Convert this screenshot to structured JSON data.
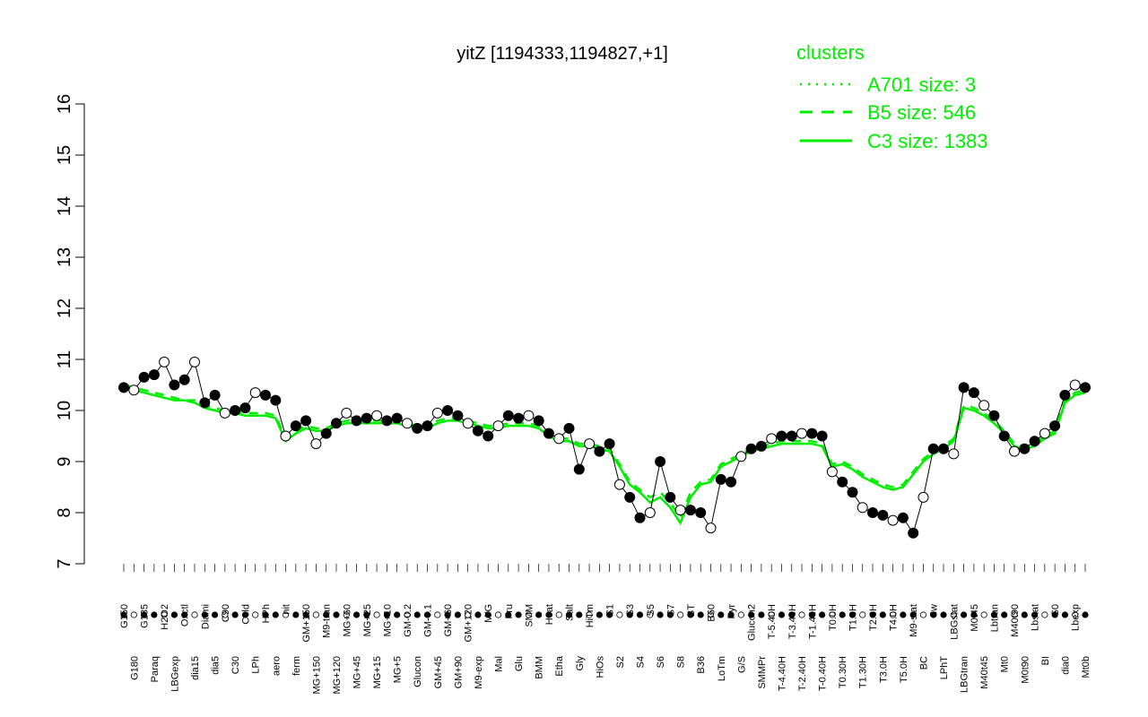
{
  "chart_data": {
    "type": "line",
    "title": "yitZ [1194333,1194827,+1]",
    "ylim": [
      7,
      16
    ],
    "yticks": [
      7,
      8,
      9,
      10,
      11,
      12,
      13,
      14,
      15,
      16
    ],
    "legend": {
      "title": "clusters",
      "placement": "top-right",
      "entries": [
        {
          "label": "A701 size: 3",
          "style": "dotted"
        },
        {
          "label": "B5 size: 546",
          "style": "dashed"
        },
        {
          "label": "C3 size: 1383",
          "style": "solid"
        }
      ]
    },
    "colors": {
      "cluster_line": "#00ee00",
      "point_dark": "#000000",
      "point_light": "#ffffff"
    },
    "categories": [
      "G150",
      "G180",
      "G135",
      "Paraq",
      "H2O2",
      "LBGexp",
      "Oxctl",
      "dia15",
      "Diami",
      "dia5",
      "C90",
      "C30",
      "Cold",
      "LPh",
      "HPh",
      "aero",
      "nit",
      "ferm",
      "GM+150",
      "MG+150",
      "M9-tran",
      "MG+120",
      "MG+60",
      "MG+45",
      "MG+25",
      "MG+15",
      "MG+10",
      "MG+5",
      "GM-0.2",
      "Glucon",
      "GM-0.1",
      "GM+45",
      "GM+60",
      "GM+90",
      "GM+120",
      "M9-exp",
      "M/G",
      "Mal",
      "Fru",
      "Glu",
      "SMM",
      "BMM",
      "Heat",
      "Etha",
      "Salt",
      "Gly",
      "HiTm",
      "HiOs",
      "S1",
      "S2",
      "S3",
      "S4",
      "S5",
      "S6",
      "S7",
      "S8",
      "BT",
      "B36",
      "B60",
      "LoTm",
      "Pyr",
      "G/S",
      "Glucon2",
      "SMMPr",
      "T-5.40H",
      "T-4.40H",
      "T-3.40H",
      "T-2.40H",
      "T-1.40H",
      "T-0.40H",
      "T0.0H",
      "T0.30H",
      "T1.0H",
      "T1.30H",
      "T2.0H",
      "T3.0H",
      "T4.0H",
      "T5.0H",
      "M9-stat",
      "BC",
      "Sw",
      "LPhT",
      "LBGstat",
      "LBGtran",
      "M0t45",
      "M40t45",
      "Lbtran",
      "Mt0",
      "M40t90",
      "M0t90",
      "Lbstat",
      "BI",
      "S0",
      "dia0",
      "Lbexp",
      "Mt0b"
    ],
    "series": [
      {
        "values": [
          10.45,
          10.4,
          10.65,
          10.7,
          10.95,
          10.5,
          10.6,
          10.95,
          10.15,
          10.3,
          9.95,
          10.0,
          10.05,
          10.35,
          10.3,
          10.2,
          9.5,
          9.7,
          9.8,
          9.35,
          9.55,
          9.75,
          9.95,
          9.8,
          9.85,
          9.9,
          9.8,
          9.85,
          9.75,
          9.65,
          9.7,
          9.95,
          10.0,
          9.9,
          9.75,
          9.6,
          9.5,
          9.7,
          9.9,
          9.85,
          9.9,
          9.8,
          9.55,
          9.45,
          9.65,
          8.85,
          9.35,
          9.2,
          9.35,
          8.55,
          8.3,
          7.9,
          8.0,
          9.0,
          8.3,
          8.05,
          8.05,
          8.0,
          7.7,
          8.65,
          8.6,
          9.1,
          9.25,
          9.3,
          9.45,
          9.5,
          9.5,
          9.55,
          9.55,
          9.5,
          8.8,
          8.6,
          8.4,
          8.1,
          8.0,
          7.95,
          7.85,
          7.9,
          7.6,
          8.3,
          9.25,
          9.25,
          9.15,
          10.45,
          10.35,
          10.1,
          9.9,
          9.5,
          9.2,
          9.25,
          9.4,
          9.55,
          9.7,
          10.3,
          10.5,
          10.45
        ]
      }
    ],
    "cluster_lines": [
      {
        "name": "C3 size: 1383",
        "style": "solid",
        "values": [
          10.45,
          10.4,
          10.35,
          10.3,
          10.25,
          10.2,
          10.2,
          10.15,
          10.05,
          10.0,
          9.95,
          9.95,
          9.9,
          9.9,
          9.9,
          9.85,
          9.4,
          9.55,
          9.65,
          9.6,
          9.6,
          9.7,
          9.75,
          9.75,
          9.75,
          9.75,
          9.75,
          9.75,
          9.7,
          9.65,
          9.65,
          9.75,
          9.8,
          9.8,
          9.75,
          9.7,
          9.65,
          9.65,
          9.7,
          9.7,
          9.7,
          9.65,
          9.5,
          9.4,
          9.4,
          9.3,
          9.3,
          9.25,
          9.2,
          8.9,
          8.55,
          8.4,
          8.2,
          8.3,
          8.1,
          7.8,
          8.3,
          8.55,
          8.6,
          8.9,
          9.0,
          9.1,
          9.2,
          9.25,
          9.3,
          9.35,
          9.35,
          9.35,
          9.35,
          9.3,
          8.9,
          8.95,
          8.85,
          8.7,
          8.6,
          8.5,
          8.45,
          8.5,
          8.75,
          9.0,
          9.15,
          9.25,
          9.4,
          10.05,
          10.0,
          9.9,
          9.75,
          9.55,
          9.3,
          9.25,
          9.3,
          9.45,
          9.55,
          10.15,
          10.3,
          10.35
        ]
      },
      {
        "name": "B5 size: 546",
        "style": "dashed",
        "values": [
          10.5,
          10.45,
          10.4,
          10.35,
          10.3,
          10.25,
          10.2,
          10.2,
          10.1,
          10.05,
          10.0,
          10.0,
          9.95,
          9.95,
          9.95,
          9.9,
          9.45,
          9.6,
          9.7,
          9.65,
          9.65,
          9.75,
          9.8,
          9.8,
          9.8,
          9.8,
          9.8,
          9.8,
          9.75,
          9.7,
          9.7,
          9.8,
          9.85,
          9.85,
          9.8,
          9.75,
          9.7,
          9.7,
          9.75,
          9.75,
          9.75,
          9.7,
          9.55,
          9.45,
          9.45,
          9.35,
          9.35,
          9.3,
          9.25,
          8.95,
          8.6,
          8.45,
          8.3,
          8.4,
          8.2,
          7.9,
          8.4,
          8.6,
          8.65,
          8.95,
          9.05,
          9.15,
          9.25,
          9.3,
          9.35,
          9.4,
          9.4,
          9.4,
          9.4,
          9.35,
          8.95,
          9.0,
          8.9,
          8.75,
          8.65,
          8.55,
          8.5,
          8.55,
          8.8,
          9.05,
          9.2,
          9.3,
          9.45,
          10.1,
          10.05,
          9.95,
          9.8,
          9.6,
          9.35,
          9.3,
          9.35,
          9.5,
          9.6,
          10.2,
          10.35,
          10.4
        ]
      }
    ]
  }
}
